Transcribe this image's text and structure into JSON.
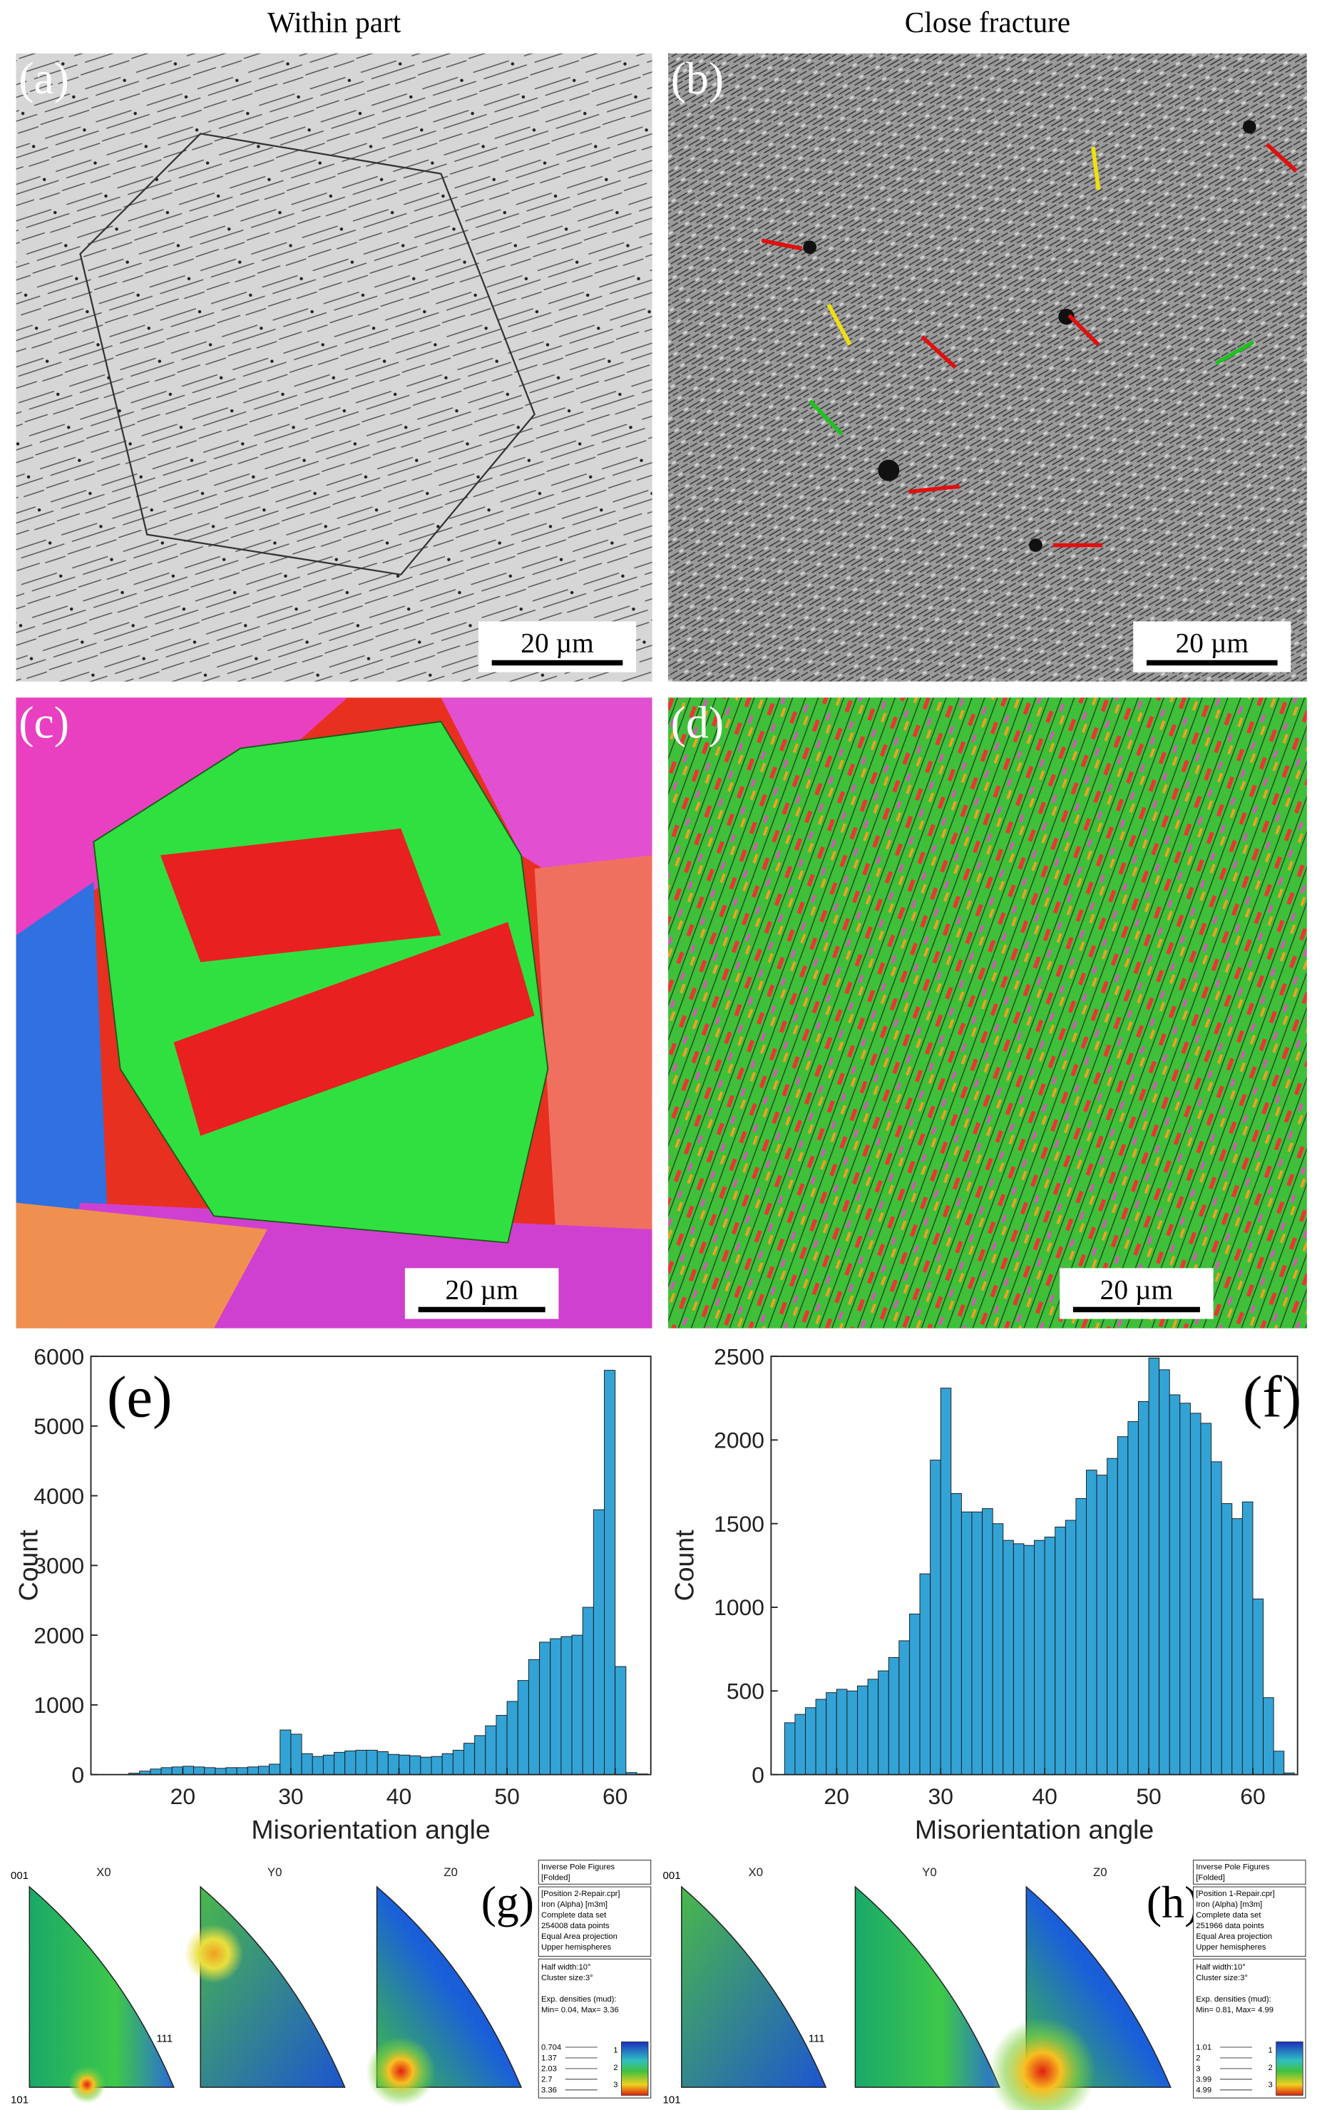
{
  "headers": [
    "Within part",
    "Close fracture"
  ],
  "panels": [
    {
      "label": "(a)",
      "scale_bar": "20 µm"
    },
    {
      "label": "(b)",
      "scale_bar": "20 µm"
    },
    {
      "label": "(c)",
      "scale_bar": "20 µm"
    },
    {
      "label": "(d)",
      "scale_bar": "20 µm"
    }
  ],
  "chart_data": [
    {
      "type": "histogram",
      "label": "(e)",
      "xlabel": "Misorientation angle",
      "ylabel": "Count",
      "color": "#33a3d6",
      "bins": [
        15,
        16,
        17,
        18,
        19,
        20,
        21,
        22,
        23,
        24,
        25,
        26,
        27,
        28,
        29,
        30,
        31,
        32,
        33,
        34,
        35,
        36,
        37,
        38,
        39,
        40,
        41,
        42,
        43,
        44,
        45,
        46,
        47,
        48,
        49,
        50,
        51,
        52,
        53,
        54,
        55,
        56,
        57,
        58,
        59,
        60,
        61,
        62,
        63
      ],
      "values": [
        20,
        50,
        80,
        100,
        110,
        120,
        110,
        100,
        90,
        100,
        100,
        110,
        120,
        150,
        640,
        580,
        300,
        260,
        280,
        320,
        340,
        350,
        350,
        330,
        290,
        280,
        270,
        250,
        260,
        300,
        350,
        450,
        560,
        700,
        850,
        1050,
        1350,
        1650,
        1900,
        1950,
        1980,
        2000,
        2400,
        3800,
        5800,
        1550,
        30,
        10
      ],
      "xlim": [
        11.5,
        63.3
      ],
      "ylim": [
        0,
        6000
      ],
      "xticks": [
        20,
        30,
        40,
        50,
        60
      ],
      "yticks": [
        0,
        1000,
        2000,
        3000,
        4000,
        5000,
        6000
      ]
    },
    {
      "type": "histogram",
      "label": "(f)",
      "xlabel": "Misorientation angle",
      "ylabel": "Count",
      "color": "#33a3d6",
      "bins": [
        15,
        16,
        17,
        18,
        19,
        20,
        21,
        22,
        23,
        24,
        25,
        26,
        27,
        28,
        29,
        30,
        31,
        32,
        33,
        34,
        35,
        36,
        37,
        38,
        39,
        40,
        41,
        42,
        43,
        44,
        45,
        46,
        47,
        48,
        49,
        50,
        51,
        52,
        53,
        54,
        55,
        56,
        57,
        58,
        59,
        60,
        61,
        62,
        63,
        64
      ],
      "values": [
        310,
        360,
        400,
        450,
        490,
        510,
        500,
        530,
        570,
        620,
        700,
        800,
        960,
        1200,
        1880,
        2310,
        1680,
        1570,
        1570,
        1590,
        1500,
        1400,
        1380,
        1370,
        1400,
        1420,
        1480,
        1520,
        1650,
        1820,
        1790,
        1890,
        2020,
        2110,
        2230,
        2490,
        2420,
        2270,
        2220,
        2160,
        2100,
        1870,
        1620,
        1530,
        1630,
        1050,
        460,
        140,
        10
      ],
      "xlim": [
        13.7,
        64.3
      ],
      "ylim": [
        0,
        2500
      ],
      "xticks": [
        20,
        30,
        40,
        50,
        60
      ],
      "yticks": [
        0,
        500,
        1000,
        1500,
        2000,
        2500
      ]
    }
  ],
  "pole_figures": [
    {
      "label": "(g)",
      "axes": [
        "X0",
        "Y0",
        "Z0"
      ],
      "corners": [
        "001",
        "101",
        "111"
      ],
      "info": [
        "Inverse Pole Figures",
        "[Folded]"
      ],
      "dataset": [
        "[Position 2-Repair.cpr]",
        "Iron (Alpha) [m3m]",
        "Complete data set",
        "254008 data points",
        "Equal Area projection",
        "Upper hemispheres"
      ],
      "settings": [
        "Half width:10°",
        "Cluster size:3°",
        "Exp. densities (mud):",
        "Min= 0.04, Max= 3.36"
      ],
      "levels": [
        "0.704",
        "1.37",
        "2.03",
        "2.7",
        "3.36"
      ],
      "colorbar": [
        "1",
        "2",
        "3"
      ]
    },
    {
      "label": "(h)",
      "axes": [
        "X0",
        "Y0",
        "Z0"
      ],
      "corners": [
        "001",
        "101",
        "111"
      ],
      "info": [
        "Inverse Pole Figures",
        "[Folded]"
      ],
      "dataset": [
        "[Position 1-Repair.cpr]",
        "Iron (Alpha) [m3m]",
        "Complete data set",
        "251966 data points",
        "Equal Area projection",
        "Upper hemispheres"
      ],
      "settings": [
        "Half width:10°",
        "Cluster size:3°",
        "Exp. densities (mud):",
        "Min= 0.81, Max= 4.99"
      ],
      "levels": [
        "1.01",
        "2",
        "3",
        "3.99",
        "4.99"
      ],
      "colorbar": [
        "1",
        "2",
        "3"
      ]
    }
  ]
}
